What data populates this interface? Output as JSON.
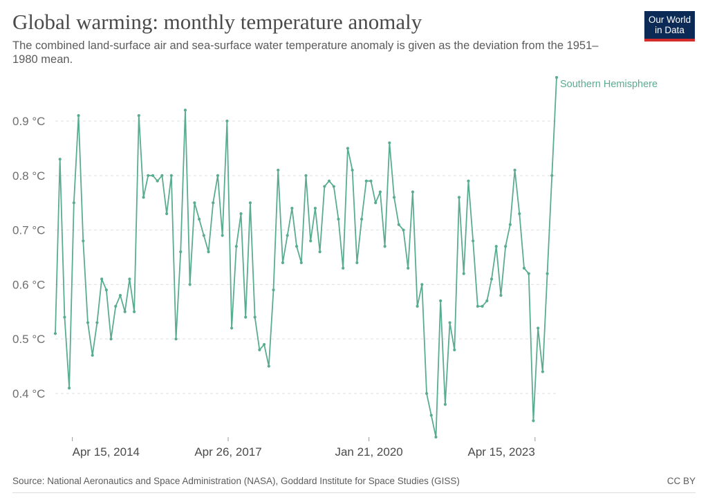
{
  "header": {
    "title": "Global warming: monthly temperature anomaly",
    "subtitle": "The combined land-surface air and sea-surface water temperature anomaly is given as the deviation from the 1951–1980 mean."
  },
  "logo": {
    "line1": "Our World",
    "line2": "in Data"
  },
  "footer": {
    "source": "Source: National Aeronautics and Space Administration (NASA), Goddard Institute for Space Studies (GISS)",
    "license": "CC BY"
  },
  "colors": {
    "series": "#5aac8e",
    "grid": "#dddddd",
    "logo_bg": "#0b2a55",
    "logo_accent": "#d42b2b"
  },
  "chart_data": {
    "type": "line",
    "title": "Global warming: monthly temperature anomaly",
    "x_range": [
      "2013-12-15",
      "2023-09-15"
    ],
    "ylim": [
      0.32,
      0.98
    ],
    "grid": true,
    "yticks": [
      {
        "value": 0.4,
        "label": "0.4 °C"
      },
      {
        "value": 0.5,
        "label": "0.5 °C"
      },
      {
        "value": 0.6,
        "label": "0.6 °C"
      },
      {
        "value": 0.7,
        "label": "0.7 °C"
      },
      {
        "value": 0.8,
        "label": "0.8 °C"
      },
      {
        "value": 0.9,
        "label": "0.9 °C"
      }
    ],
    "xticks": [
      {
        "date": "2014-04-15",
        "label": "Apr 15, 2014",
        "align": "start"
      },
      {
        "date": "2017-04-26",
        "label": "Apr 26, 2017",
        "align": "middle"
      },
      {
        "date": "2020-01-21",
        "label": "Jan 21, 2020",
        "align": "middle"
      },
      {
        "date": "2023-04-15",
        "label": "Apr 15, 2023",
        "align": "end"
      }
    ],
    "series": [
      {
        "name": "Southern Hemisphere",
        "color": "#5aac8e",
        "start": "2013-12-15",
        "end": "2023-09-15",
        "values": [
          0.51,
          0.83,
          0.54,
          0.41,
          0.75,
          0.91,
          0.68,
          0.53,
          0.47,
          0.53,
          0.61,
          0.59,
          0.5,
          0.56,
          0.58,
          0.55,
          0.61,
          0.55,
          0.91,
          0.76,
          0.8,
          0.8,
          0.79,
          0.8,
          0.73,
          0.8,
          0.5,
          0.66,
          0.92,
          0.6,
          0.75,
          0.72,
          0.69,
          0.66,
          0.75,
          0.8,
          0.69,
          0.9,
          0.52,
          0.67,
          0.73,
          0.54,
          0.75,
          0.54,
          0.48,
          0.49,
          0.45,
          0.59,
          0.81,
          0.64,
          0.69,
          0.74,
          0.67,
          0.64,
          0.8,
          0.68,
          0.74,
          0.66,
          0.78,
          0.79,
          0.78,
          0.72,
          0.63,
          0.85,
          0.81,
          0.64,
          0.72,
          0.79,
          0.79,
          0.75,
          0.77,
          0.67,
          0.86,
          0.76,
          0.71,
          0.7,
          0.63,
          0.77,
          0.56,
          0.6,
          0.4,
          0.36,
          0.32,
          0.57,
          0.38,
          0.53,
          0.48,
          0.76,
          0.62,
          0.79,
          0.68,
          0.56,
          0.56,
          0.57,
          0.61,
          0.67,
          0.58,
          0.67,
          0.71,
          0.81,
          0.73,
          0.63,
          0.62,
          0.35,
          0.52,
          0.44,
          0.62,
          0.8,
          0.98
        ]
      }
    ]
  }
}
